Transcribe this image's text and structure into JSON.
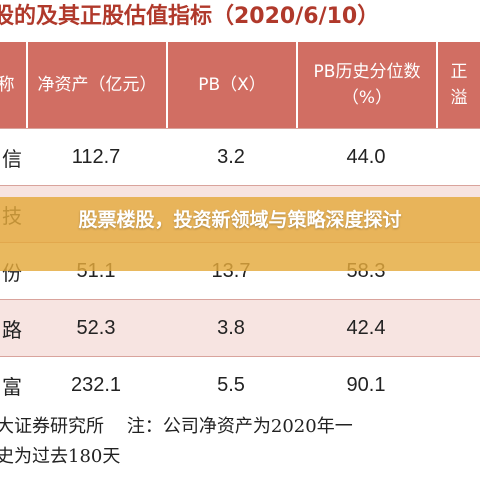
{
  "image": {
    "title": "股的及其正股估值指标（2020/6/10）",
    "columns": [
      "称",
      "净资产（亿元）",
      "PB（X）",
      "PB历史分位数（%）",
      "正溢"
    ],
    "rows": [
      {
        "name": "信",
        "net_assets": "112.7",
        "pb": "3.2",
        "pb_percentile": "44.0"
      },
      {
        "name": "技",
        "net_assets": "",
        "pb": "",
        "pb_percentile": ""
      },
      {
        "name": "份",
        "net_assets": "51.1",
        "pb": "13.7",
        "pb_percentile": "58.3"
      },
      {
        "name": "路",
        "net_assets": "52.3",
        "pb": "3.8",
        "pb_percentile": "42.4"
      },
      {
        "name": "富",
        "net_assets": "232.1",
        "pb": "5.5",
        "pb_percentile": "90.1"
      }
    ],
    "source_line1": "大证券研究所    注：公司净资产为2020年一",
    "source_line2": "史为过去180天"
  },
  "banner": {
    "text": "股票楼股，投资新领域与策略深度探讨",
    "color": "#e4aa3c"
  }
}
